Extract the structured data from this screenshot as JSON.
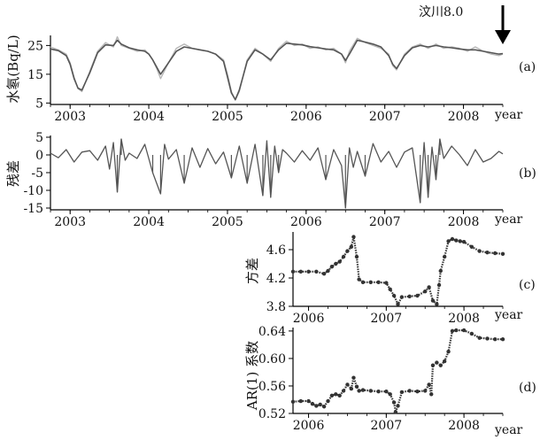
{
  "annotation": {
    "text": "汶川8.0"
  },
  "chart_data": [
    {
      "type": "line",
      "panel_label": "(a)",
      "ylabel": "水氡(Bq/L)",
      "xlabel": "year",
      "xlim": [
        2002.75,
        2008.5
      ],
      "ylim": [
        4.5,
        28.5
      ],
      "xticks": [
        "2003",
        "2004",
        "2005",
        "2006",
        "2007",
        "2008"
      ],
      "yticks": [
        "5",
        "15",
        "25"
      ],
      "series": [
        {
          "role": "observed",
          "color": "#b8b8b8",
          "x": [
            2002.75,
            2002.85,
            2002.95,
            2003.0,
            2003.05,
            2003.1,
            2003.15,
            2003.25,
            2003.35,
            2003.45,
            2003.55,
            2003.6,
            2003.65,
            2003.75,
            2003.85,
            2003.95,
            2004.0,
            2004.05,
            2004.1,
            2004.15,
            2004.25,
            2004.35,
            2004.45,
            2004.55,
            2004.65,
            2004.75,
            2004.85,
            2004.95,
            2005.0,
            2005.05,
            2005.1,
            2005.15,
            2005.25,
            2005.35,
            2005.45,
            2005.55,
            2005.65,
            2005.75,
            2005.85,
            2005.95,
            2006.05,
            2006.15,
            2006.25,
            2006.35,
            2006.45,
            2006.5,
            2006.55,
            2006.65,
            2006.75,
            2006.85,
            2006.95,
            2007.05,
            2007.1,
            2007.15,
            2007.25,
            2007.35,
            2007.45,
            2007.55,
            2007.65,
            2007.75,
            2007.85,
            2007.95,
            2008.05,
            2008.15,
            2008.25,
            2008.35,
            2008.45,
            2008.5
          ],
          "values": [
            24.5,
            23.5,
            22.0,
            19.0,
            14.0,
            10.0,
            9.0,
            16.0,
            23.0,
            26.0,
            24.5,
            28.0,
            25.0,
            24.0,
            23.0,
            23.5,
            22.0,
            20.0,
            17.0,
            13.5,
            19.0,
            24.0,
            25.5,
            24.0,
            23.5,
            23.0,
            22.0,
            20.0,
            15.0,
            9.0,
            6.0,
            9.0,
            20.0,
            24.0,
            22.0,
            19.5,
            24.0,
            26.5,
            25.0,
            25.5,
            24.0,
            24.5,
            23.5,
            24.0,
            22.0,
            19.0,
            23.0,
            27.5,
            26.0,
            25.0,
            24.0,
            22.0,
            18.0,
            16.5,
            22.0,
            24.5,
            25.5,
            24.0,
            25.5,
            24.0,
            24.5,
            24.0,
            23.0,
            24.5,
            23.0,
            22.0,
            21.5,
            22.0
          ]
        },
        {
          "role": "fitted",
          "color": "#555555",
          "x": [
            2002.75,
            2002.85,
            2002.95,
            2003.0,
            2003.05,
            2003.1,
            2003.15,
            2003.25,
            2003.35,
            2003.45,
            2003.55,
            2003.6,
            2003.65,
            2003.75,
            2003.85,
            2003.95,
            2004.0,
            2004.05,
            2004.1,
            2004.15,
            2004.25,
            2004.35,
            2004.45,
            2004.55,
            2004.65,
            2004.75,
            2004.85,
            2004.95,
            2005.0,
            2005.05,
            2005.1,
            2005.15,
            2005.25,
            2005.35,
            2005.45,
            2005.55,
            2005.65,
            2005.75,
            2005.85,
            2005.95,
            2006.05,
            2006.15,
            2006.25,
            2006.35,
            2006.45,
            2006.5,
            2006.55,
            2006.65,
            2006.75,
            2006.85,
            2006.95,
            2007.05,
            2007.1,
            2007.15,
            2007.25,
            2007.35,
            2007.45,
            2007.55,
            2007.65,
            2007.75,
            2007.85,
            2007.95,
            2008.05,
            2008.15,
            2008.25,
            2008.35,
            2008.45,
            2008.5
          ],
          "values": [
            23.8,
            23.2,
            21.5,
            18.5,
            13.5,
            10.2,
            9.5,
            15.5,
            22.5,
            25.2,
            25.0,
            26.8,
            25.5,
            24.2,
            23.5,
            23.0,
            22.0,
            20.0,
            17.5,
            15.0,
            19.0,
            23.0,
            24.5,
            24.0,
            23.5,
            23.0,
            22.0,
            19.5,
            14.0,
            8.5,
            6.2,
            9.5,
            19.5,
            23.5,
            22.0,
            20.0,
            23.5,
            25.8,
            25.5,
            25.2,
            24.6,
            24.2,
            23.8,
            23.5,
            22.0,
            19.8,
            22.0,
            26.8,
            26.2,
            25.5,
            24.5,
            21.5,
            18.5,
            17.0,
            21.5,
            24.2,
            25.0,
            24.5,
            25.0,
            24.5,
            24.2,
            23.8,
            23.5,
            23.5,
            23.0,
            22.5,
            22.0,
            22.2
          ]
        }
      ]
    },
    {
      "type": "line",
      "panel_label": "(b)",
      "ylabel": "残差",
      "xlabel": "year",
      "xlim": [
        2002.75,
        2008.5
      ],
      "ylim": [
        -15.5,
        5.5
      ],
      "xticks": [
        "2003",
        "2004",
        "2005",
        "2006",
        "2007",
        "2008"
      ],
      "yticks": [
        "5",
        "0",
        "-5",
        "-10",
        "-15"
      ],
      "series": [
        {
          "role": "residual",
          "color": "#555555",
          "x": [
            2002.75,
            2002.85,
            2002.95,
            2003.05,
            2003.15,
            2003.25,
            2003.35,
            2003.45,
            2003.5,
            2003.55,
            2003.6,
            2003.65,
            2003.7,
            2003.75,
            2003.85,
            2003.95,
            2004.05,
            2004.15,
            2004.2,
            2004.25,
            2004.35,
            2004.45,
            2004.55,
            2004.65,
            2004.75,
            2004.85,
            2004.95,
            2005.05,
            2005.15,
            2005.25,
            2005.35,
            2005.45,
            2005.5,
            2005.55,
            2005.6,
            2005.65,
            2005.7,
            2005.75,
            2005.85,
            2005.95,
            2006.05,
            2006.15,
            2006.25,
            2006.35,
            2006.45,
            2006.5,
            2006.55,
            2006.6,
            2006.65,
            2006.75,
            2006.85,
            2006.95,
            2007.05,
            2007.15,
            2007.25,
            2007.35,
            2007.45,
            2007.5,
            2007.55,
            2007.6,
            2007.65,
            2007.7,
            2007.75,
            2007.85,
            2007.95,
            2008.05,
            2008.15,
            2008.25,
            2008.35,
            2008.45,
            2008.5
          ],
          "values": [
            0.5,
            -0.8,
            1.5,
            -2.0,
            0.8,
            1.2,
            -1.5,
            2.5,
            -4.0,
            3.5,
            -10.5,
            4.5,
            -1.5,
            0.5,
            -1.0,
            3.0,
            -5.0,
            -11.0,
            3.0,
            -1.2,
            1.5,
            -8.0,
            2.0,
            -3.5,
            1.8,
            -2.5,
            0.8,
            -6.5,
            2.5,
            -8.0,
            3.0,
            -11.5,
            4.0,
            -12.0,
            2.5,
            -5.0,
            1.5,
            0.5,
            -2.0,
            1.2,
            -1.5,
            2.0,
            -7.0,
            1.5,
            -3.0,
            -15.0,
            2.0,
            -3.5,
            1.0,
            -6.0,
            3.2,
            -2.0,
            1.0,
            -3.5,
            0.8,
            2.0,
            -13.5,
            3.5,
            -12.0,
            2.2,
            -7.0,
            4.5,
            -1.0,
            2.5,
            0.0,
            -3.0,
            1.5,
            -2.0,
            -1.0,
            1.0,
            0.3
          ]
        }
      ]
    },
    {
      "type": "scatter",
      "panel_label": "(c)",
      "ylabel": "方差",
      "xlabel": "year",
      "xlim": [
        2005.8,
        2008.5
      ],
      "ylim": [
        3.8,
        4.85
      ],
      "xticks": [
        "2006",
        "2007",
        "2008"
      ],
      "yticks": [
        "4.6",
        "4.2",
        "3.8"
      ],
      "series": [
        {
          "role": "variance",
          "color": "#333333",
          "x": [
            2005.8,
            2005.9,
            2006.0,
            2006.1,
            2006.2,
            2006.25,
            2006.3,
            2006.35,
            2006.4,
            2006.45,
            2006.5,
            2006.55,
            2006.58,
            2006.62,
            2006.65,
            2006.7,
            2006.8,
            2006.9,
            2007.0,
            2007.05,
            2007.1,
            2007.15,
            2007.2,
            2007.3,
            2007.4,
            2007.5,
            2007.55,
            2007.6,
            2007.65,
            2007.68,
            2007.7,
            2007.75,
            2007.8,
            2007.85,
            2007.9,
            2007.95,
            2008.0,
            2008.1,
            2008.2,
            2008.3,
            2008.4,
            2008.5
          ],
          "values": [
            4.29,
            4.29,
            4.29,
            4.29,
            4.26,
            4.3,
            4.36,
            4.4,
            4.43,
            4.5,
            4.58,
            4.64,
            4.78,
            4.5,
            4.18,
            4.14,
            4.14,
            4.14,
            4.13,
            4.04,
            3.95,
            3.83,
            3.93,
            3.94,
            3.95,
            4.01,
            4.07,
            3.88,
            3.83,
            4.1,
            4.3,
            4.5,
            4.72,
            4.75,
            4.73,
            4.72,
            4.71,
            4.64,
            4.58,
            4.56,
            4.55,
            4.54
          ]
        }
      ]
    },
    {
      "type": "scatter",
      "panel_label": "(d)",
      "ylabel": "AR(1) 系数",
      "xlabel": "year",
      "xlim": [
        2005.8,
        2008.5
      ],
      "ylim": [
        0.52,
        0.645
      ],
      "xticks": [
        "2006",
        "2007",
        "2008"
      ],
      "yticks": [
        "0.64",
        "0.60",
        "0.56",
        "0.52"
      ],
      "series": [
        {
          "role": "ar1",
          "color": "#333333",
          "x": [
            2005.8,
            2005.9,
            2006.0,
            2006.05,
            2006.1,
            2006.15,
            2006.2,
            2006.25,
            2006.3,
            2006.35,
            2006.4,
            2006.45,
            2006.5,
            2006.55,
            2006.58,
            2006.62,
            2006.65,
            2006.7,
            2006.8,
            2006.9,
            2007.0,
            2007.05,
            2007.1,
            2007.12,
            2007.15,
            2007.2,
            2007.3,
            2007.4,
            2007.5,
            2007.55,
            2007.58,
            2007.6,
            2007.65,
            2007.7,
            2007.75,
            2007.8,
            2007.85,
            2007.9,
            2008.0,
            2008.1,
            2008.2,
            2008.3,
            2008.4,
            2008.5
          ],
          "values": [
            0.537,
            0.538,
            0.538,
            0.534,
            0.531,
            0.533,
            0.53,
            0.538,
            0.546,
            0.548,
            0.546,
            0.553,
            0.562,
            0.556,
            0.572,
            0.559,
            0.553,
            0.554,
            0.553,
            0.552,
            0.552,
            0.548,
            0.536,
            0.522,
            0.531,
            0.551,
            0.553,
            0.552,
            0.553,
            0.562,
            0.548,
            0.59,
            0.594,
            0.59,
            0.596,
            0.61,
            0.64,
            0.641,
            0.641,
            0.636,
            0.63,
            0.629,
            0.628,
            0.628
          ]
        }
      ]
    }
  ]
}
